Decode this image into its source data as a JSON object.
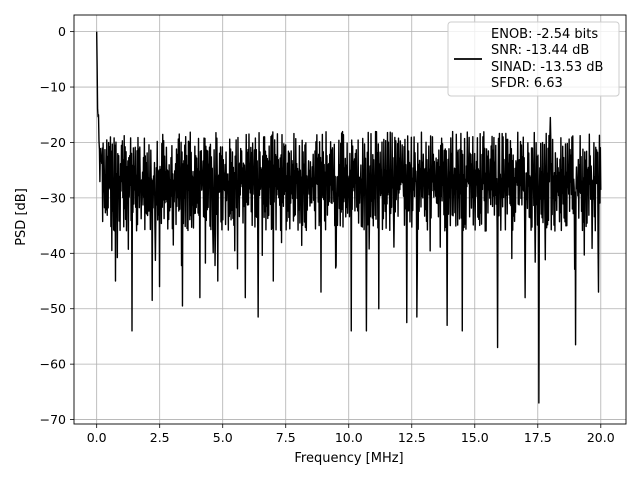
{
  "chart_data": {
    "type": "line",
    "xlabel": "Frequency [MHz]",
    "ylabel": "PSD [dB]",
    "xlim": [
      -0.9,
      21.0
    ],
    "ylim": [
      -70.8,
      3.0
    ],
    "x_ticks": [
      0.0,
      2.5,
      5.0,
      7.5,
      10.0,
      12.5,
      15.0,
      17.5,
      20.0
    ],
    "x_tick_labels": [
      "0.0",
      "2.5",
      "5.0",
      "7.5",
      "10.0",
      "12.5",
      "15.0",
      "17.5",
      "20.0"
    ],
    "y_ticks": [
      0,
      -10,
      -20,
      -30,
      -40,
      -50,
      -60,
      -70
    ],
    "y_tick_labels": [
      "0",
      "−10",
      "−20",
      "−30",
      "−40",
      "−50",
      "−60",
      "−70"
    ],
    "grid": true,
    "legend_position": "top-right",
    "legend_lines": [
      "ENOB: -2.54 bits",
      "SNR: -13.44 dB",
      "SINAD: -13.53 dB",
      "SFDR: 6.63"
    ],
    "series_color": "#000000",
    "x_range": [
      0.0,
      20.0
    ],
    "peak": {
      "x": 0.0,
      "y": 0.0
    },
    "noise_floor_mean": -27,
    "noise_band": [
      -38,
      -16
    ],
    "dips": [
      {
        "x": 0.6,
        "y": -39.5
      },
      {
        "x": 0.75,
        "y": -45
      },
      {
        "x": 1.4,
        "y": -54
      },
      {
        "x": 2.2,
        "y": -48.5
      },
      {
        "x": 2.5,
        "y": -46
      },
      {
        "x": 3.4,
        "y": -49.5
      },
      {
        "x": 4.1,
        "y": -48
      },
      {
        "x": 4.8,
        "y": -45
      },
      {
        "x": 5.9,
        "y": -48
      },
      {
        "x": 6.4,
        "y": -51.5
      },
      {
        "x": 7.0,
        "y": -45
      },
      {
        "x": 8.9,
        "y": -47
      },
      {
        "x": 10.1,
        "y": -54
      },
      {
        "x": 10.7,
        "y": -54
      },
      {
        "x": 11.2,
        "y": -50
      },
      {
        "x": 12.3,
        "y": -52.5
      },
      {
        "x": 12.7,
        "y": -51.5
      },
      {
        "x": 13.9,
        "y": -53
      },
      {
        "x": 14.5,
        "y": -54
      },
      {
        "x": 15.9,
        "y": -57
      },
      {
        "x": 17.0,
        "y": -48
      },
      {
        "x": 17.55,
        "y": -67
      },
      {
        "x": 19.0,
        "y": -56.5
      },
      {
        "x": 19.9,
        "y": -47
      }
    ],
    "spikes": [
      {
        "x": 10.1,
        "y": -15
      },
      {
        "x": 18.0,
        "y": -15.5
      }
    ]
  }
}
